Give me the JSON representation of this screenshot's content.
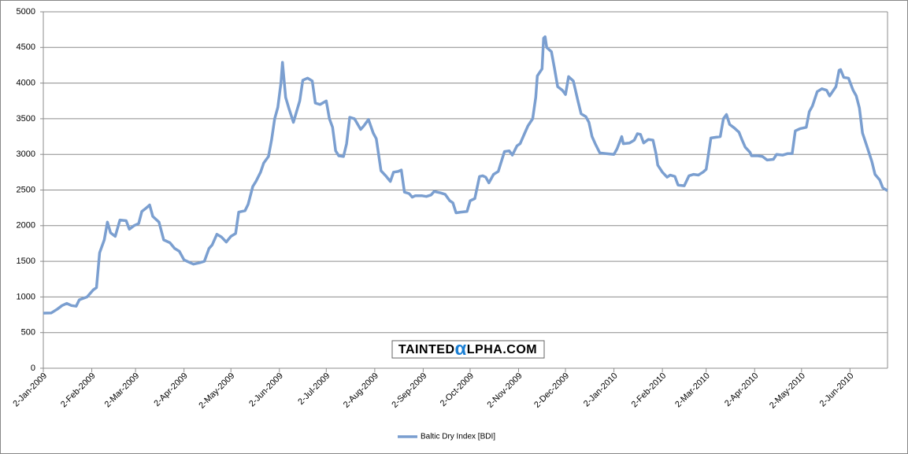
{
  "chart_data": {
    "type": "line",
    "series": [
      {
        "name": "Baltic Dry Index [BDI]",
        "color": "#7b9fd0",
        "x": [
          "2009-01-02",
          "2009-01-07",
          "2009-01-11",
          "2009-01-14",
          "2009-01-17",
          "2009-01-20",
          "2009-01-23",
          "2009-01-25",
          "2009-01-30",
          "2009-02-03",
          "2009-02-05",
          "2009-02-07",
          "2009-02-10",
          "2009-02-12",
          "2009-02-14",
          "2009-02-17",
          "2009-02-20",
          "2009-02-24",
          "2009-02-26",
          "2009-03-01",
          "2009-03-04",
          "2009-03-06",
          "2009-03-09",
          "2009-03-11",
          "2009-03-13",
          "2009-03-17",
          "2009-03-20",
          "2009-03-24",
          "2009-03-27",
          "2009-03-30",
          "2009-04-02",
          "2009-04-05",
          "2009-04-08",
          "2009-04-12",
          "2009-04-15",
          "2009-04-18",
          "2009-04-20",
          "2009-04-23",
          "2009-04-26",
          "2009-04-29",
          "2009-05-02",
          "2009-05-05",
          "2009-05-07",
          "2009-05-11",
          "2009-05-13",
          "2009-05-16",
          "2009-05-18",
          "2009-05-21",
          "2009-05-23",
          "2009-05-26",
          "2009-05-28",
          "2009-05-30",
          "2009-06-01",
          "2009-06-03",
          "2009-06-04",
          "2009-06-06",
          "2009-06-08",
          "2009-06-11",
          "2009-06-13",
          "2009-06-15",
          "2009-06-17",
          "2009-06-20",
          "2009-06-23",
          "2009-06-25",
          "2009-06-28",
          "2009-07-02",
          "2009-07-04",
          "2009-07-06",
          "2009-07-08",
          "2009-07-10",
          "2009-07-13",
          "2009-07-15",
          "2009-07-17",
          "2009-07-20",
          "2009-07-24",
          "2009-07-26",
          "2009-07-29",
          "2009-08-01",
          "2009-08-03",
          "2009-08-06",
          "2009-08-09",
          "2009-08-12",
          "2009-08-14",
          "2009-08-17",
          "2009-08-19",
          "2009-08-21",
          "2009-08-24",
          "2009-08-26",
          "2009-08-28",
          "2009-09-01",
          "2009-09-04",
          "2009-09-07",
          "2009-09-09",
          "2009-09-13",
          "2009-09-16",
          "2009-09-19",
          "2009-09-21",
          "2009-09-23",
          "2009-09-26",
          "2009-09-30",
          "2009-10-02",
          "2009-10-05",
          "2009-10-08",
          "2009-10-10",
          "2009-10-12",
          "2009-10-14",
          "2009-10-17",
          "2009-10-20",
          "2009-10-24",
          "2009-10-27",
          "2009-10-29",
          "2009-11-01",
          "2009-11-03",
          "2009-11-06",
          "2009-11-08",
          "2009-11-11",
          "2009-11-13",
          "2009-11-14",
          "2009-11-17",
          "2009-11-18",
          "2009-11-19",
          "2009-11-20",
          "2009-11-23",
          "2009-11-25",
          "2009-11-27",
          "2009-11-30",
          "2009-12-02",
          "2009-12-04",
          "2009-12-07",
          "2009-12-10",
          "2009-12-12",
          "2009-12-15",
          "2009-12-17",
          "2009-12-19",
          "2009-12-21",
          "2009-12-24",
          "2009-12-28",
          "2010-01-02",
          "2010-01-04",
          "2010-01-07",
          "2010-01-08",
          "2010-01-12",
          "2010-01-15",
          "2010-01-17",
          "2010-01-19",
          "2010-01-21",
          "2010-01-24",
          "2010-01-27",
          "2010-01-29",
          "2010-01-30",
          "2010-02-02",
          "2010-02-05",
          "2010-02-07",
          "2010-02-10",
          "2010-02-12",
          "2010-02-16",
          "2010-02-19",
          "2010-02-22",
          "2010-02-25",
          "2010-02-28",
          "2010-03-02",
          "2010-03-05",
          "2010-03-08",
          "2010-03-11",
          "2010-03-13",
          "2010-03-15",
          "2010-03-17",
          "2010-03-20",
          "2010-03-23",
          "2010-03-25",
          "2010-03-27",
          "2010-03-30",
          "2010-03-31",
          "2010-04-04",
          "2010-04-07",
          "2010-04-10",
          "2010-04-14",
          "2010-04-16",
          "2010-04-20",
          "2010-04-23",
          "2010-04-26",
          "2010-04-28",
          "2010-05-01",
          "2010-05-05",
          "2010-05-07",
          "2010-05-09",
          "2010-05-12",
          "2010-05-15",
          "2010-05-18",
          "2010-05-20",
          "2010-05-24",
          "2010-05-26",
          "2010-05-27",
          "2010-05-29",
          "2010-06-01",
          "2010-06-04",
          "2010-06-06",
          "2010-06-08",
          "2010-06-10",
          "2010-06-13",
          "2010-06-16",
          "2010-06-18",
          "2010-06-21",
          "2010-06-23",
          "2010-06-26"
        ],
        "values": [
          773,
          775,
          830,
          880,
          910,
          880,
          870,
          960,
          1000,
          1100,
          1130,
          1620,
          1800,
          2050,
          1900,
          1850,
          2080,
          2070,
          1950,
          2000,
          2030,
          2200,
          2250,
          2290,
          2130,
          2050,
          1800,
          1760,
          1680,
          1640,
          1520,
          1490,
          1460,
          1480,
          1500,
          1680,
          1730,
          1880,
          1840,
          1770,
          1850,
          1890,
          2190,
          2210,
          2300,
          2550,
          2620,
          2750,
          2880,
          2970,
          3200,
          3500,
          3660,
          4000,
          4290,
          3800,
          3650,
          3450,
          3600,
          3750,
          4040,
          4070,
          4030,
          3720,
          3700,
          3750,
          3500,
          3380,
          3050,
          2980,
          2970,
          3150,
          3520,
          3500,
          3350,
          3400,
          3490,
          3300,
          3220,
          2770,
          2700,
          2620,
          2750,
          2760,
          2780,
          2470,
          2450,
          2400,
          2420,
          2420,
          2410,
          2430,
          2480,
          2460,
          2440,
          2350,
          2320,
          2180,
          2190,
          2200,
          2350,
          2380,
          2690,
          2700,
          2680,
          2600,
          2720,
          2760,
          3040,
          3050,
          2990,
          3120,
          3150,
          3300,
          3400,
          3500,
          3800,
          4100,
          4200,
          4630,
          4650,
          4500,
          4440,
          4200,
          3950,
          3900,
          3840,
          4090,
          4030,
          3750,
          3570,
          3530,
          3450,
          3250,
          3150,
          3020,
          3010,
          3000,
          3080,
          3250,
          3150,
          3160,
          3200,
          3290,
          3280,
          3160,
          3210,
          3200,
          3000,
          2850,
          2750,
          2680,
          2710,
          2690,
          2570,
          2560,
          2700,
          2720,
          2710,
          2750,
          2790,
          3230,
          3240,
          3250,
          3500,
          3560,
          3420,
          3370,
          3310,
          3200,
          3100,
          3030,
          2980,
          2980,
          2970,
          2920,
          2930,
          3000,
          2990,
          3010,
          3010,
          3330,
          3360,
          3380,
          3600,
          3680,
          3880,
          3920,
          3900,
          3820,
          3950,
          4180,
          4190,
          4080,
          4070,
          3900,
          3820,
          3650,
          3300,
          3100,
          2900,
          2720,
          2640,
          2530,
          2490
        ]
      }
    ],
    "xlim": [
      "2009-01-02",
      "2010-06-26"
    ],
    "xticks": [
      {
        "value": "2009-01-02",
        "label": "2-Jan-2009"
      },
      {
        "value": "2009-02-02",
        "label": "2-Feb-2009"
      },
      {
        "value": "2009-03-02",
        "label": "2-Mar-2009"
      },
      {
        "value": "2009-04-02",
        "label": "2-Apr-2009"
      },
      {
        "value": "2009-05-02",
        "label": "2-May-2009"
      },
      {
        "value": "2009-06-02",
        "label": "2-Jun-2009"
      },
      {
        "value": "2009-07-02",
        "label": "2-Jul-2009"
      },
      {
        "value": "2009-08-02",
        "label": "2-Aug-2009"
      },
      {
        "value": "2009-09-02",
        "label": "2-Sep-2009"
      },
      {
        "value": "2009-10-02",
        "label": "2-Oct-2009"
      },
      {
        "value": "2009-11-02",
        "label": "2-Nov-2009"
      },
      {
        "value": "2009-12-02",
        "label": "2-Dec-2009"
      },
      {
        "value": "2010-01-02",
        "label": "2-Jan-2010"
      },
      {
        "value": "2010-02-02",
        "label": "2-Feb-2010"
      },
      {
        "value": "2010-03-02",
        "label": "2-Mar-2010"
      },
      {
        "value": "2010-04-02",
        "label": "2-Apr-2010"
      },
      {
        "value": "2010-05-02",
        "label": "2-May-2010"
      },
      {
        "value": "2010-06-02",
        "label": "2-Jun-2010"
      }
    ],
    "ylim": [
      0,
      5000
    ],
    "yticks": [
      0,
      500,
      1000,
      1500,
      2000,
      2500,
      3000,
      3500,
      4000,
      4500,
      5000
    ],
    "grid": true,
    "legend": "bottom",
    "watermark": [
      "TAINTED",
      "α",
      "LPHA.COM"
    ]
  }
}
